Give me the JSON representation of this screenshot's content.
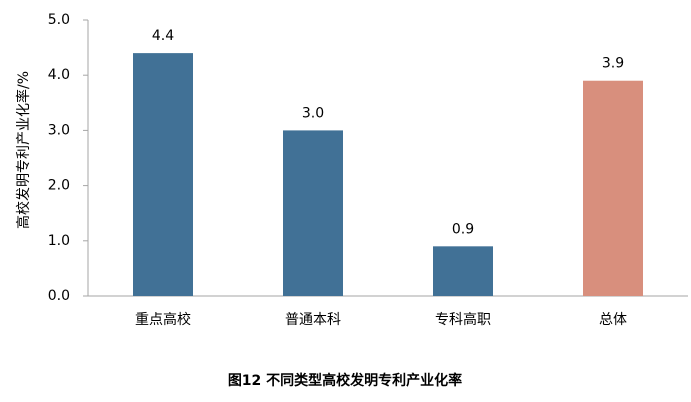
{
  "chart_data": {
    "type": "bar",
    "title": "图12   不同类型高校发明专利产业化率",
    "y_label": "高校发明专利产业化率/%",
    "categories": [
      "重点高校",
      "普通本科",
      "专科高职",
      "总体"
    ],
    "values": [
      4.4,
      3.0,
      0.9,
      3.9
    ],
    "value_labels": [
      "4.4",
      "3.0",
      "0.9",
      "3.9"
    ],
    "colors": [
      "#417196",
      "#417196",
      "#417196",
      "#d88f7d"
    ],
    "ylim": [
      0,
      5
    ],
    "yticks": [
      {
        "value": 0,
        "label": "0.0"
      },
      {
        "value": 1,
        "label": "1.0"
      },
      {
        "value": 2,
        "label": "2.0"
      },
      {
        "value": 3,
        "label": "3.0"
      },
      {
        "value": 4,
        "label": "4.0"
      },
      {
        "value": 5,
        "label": "5.0"
      }
    ],
    "grid": false
  }
}
